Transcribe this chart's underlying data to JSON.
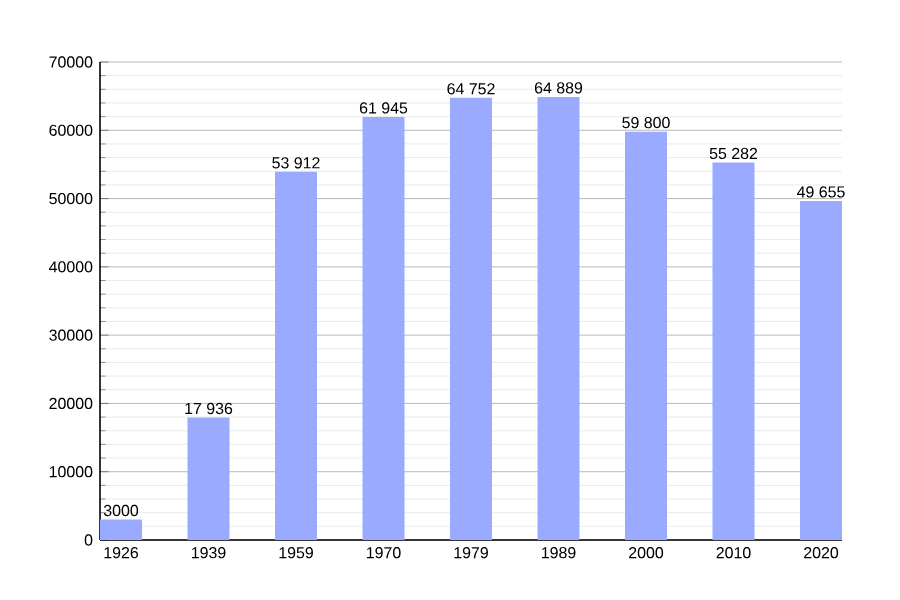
{
  "chart_data": {
    "type": "bar",
    "categories": [
      "1926",
      "1939",
      "1959",
      "1970",
      "1979",
      "1989",
      "2000",
      "2010",
      "2020"
    ],
    "values": [
      3000,
      17936,
      53912,
      61945,
      64752,
      64889,
      59800,
      55282,
      49655
    ],
    "value_labels": [
      "3000",
      "17 936",
      "53 912",
      "61 945",
      "64 752",
      "64 889",
      "59 800",
      "55 282",
      "49 655"
    ],
    "color": "#99aaff",
    "ylim": [
      0,
      70000
    ],
    "yticks": [
      0,
      10000,
      20000,
      30000,
      40000,
      50000,
      60000,
      70000
    ],
    "grid": "y"
  }
}
